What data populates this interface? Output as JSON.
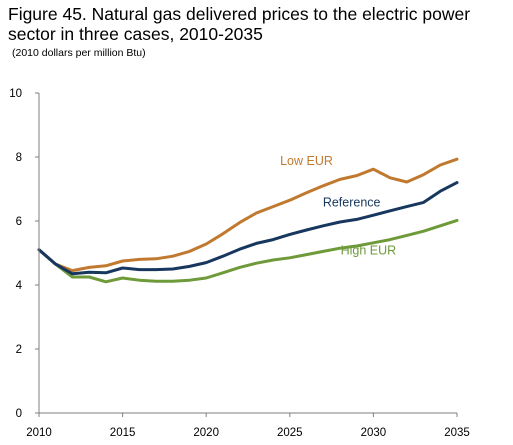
{
  "chart_data": {
    "type": "line",
    "title": "Figure 45. Natural gas delivered prices to the electric power sector in three cases, 2010-2035",
    "subtitle": "(2010 dollars per million Btu)",
    "xlabel": "",
    "ylabel": "",
    "xlim": [
      2010,
      2035
    ],
    "ylim": [
      0,
      10
    ],
    "x_ticks": [
      2010,
      2015,
      2020,
      2025,
      2030,
      2035
    ],
    "y_ticks": [
      0,
      2,
      4,
      6,
      8,
      10
    ],
    "grid": false,
    "legend": "inline labels",
    "x": [
      2010,
      2011,
      2012,
      2013,
      2014,
      2015,
      2016,
      2017,
      2018,
      2019,
      2020,
      2021,
      2022,
      2023,
      2024,
      2025,
      2026,
      2027,
      2028,
      2029,
      2030,
      2031,
      2032,
      2033,
      2034,
      2035
    ],
    "series": [
      {
        "name": "Low EUR",
        "color": "#C0792E",
        "label_x": 2026.0,
        "label_y": 7.75,
        "values": [
          5.1,
          4.65,
          4.45,
          4.55,
          4.6,
          4.75,
          4.8,
          4.82,
          4.9,
          5.05,
          5.28,
          5.6,
          5.95,
          6.25,
          6.45,
          6.65,
          6.88,
          7.1,
          7.3,
          7.42,
          7.62,
          7.35,
          7.22,
          7.45,
          7.75,
          7.93
        ]
      },
      {
        "name": "Reference",
        "color": "#17375E",
        "label_x": 2028.7,
        "label_y": 6.45,
        "values": [
          5.1,
          4.65,
          4.35,
          4.4,
          4.38,
          4.53,
          4.48,
          4.48,
          4.5,
          4.58,
          4.7,
          4.9,
          5.12,
          5.3,
          5.42,
          5.58,
          5.72,
          5.85,
          5.97,
          6.05,
          6.18,
          6.32,
          6.45,
          6.58,
          6.93,
          7.2
        ]
      },
      {
        "name": "High EUR",
        "color": "#6E9A3A",
        "label_x": 2029.7,
        "label_y": 4.95,
        "values": [
          5.1,
          4.65,
          4.25,
          4.25,
          4.1,
          4.22,
          4.15,
          4.12,
          4.12,
          4.15,
          4.22,
          4.38,
          4.55,
          4.68,
          4.78,
          4.85,
          4.95,
          5.05,
          5.15,
          5.22,
          5.32,
          5.42,
          5.55,
          5.68,
          5.85,
          6.02
        ]
      }
    ]
  }
}
